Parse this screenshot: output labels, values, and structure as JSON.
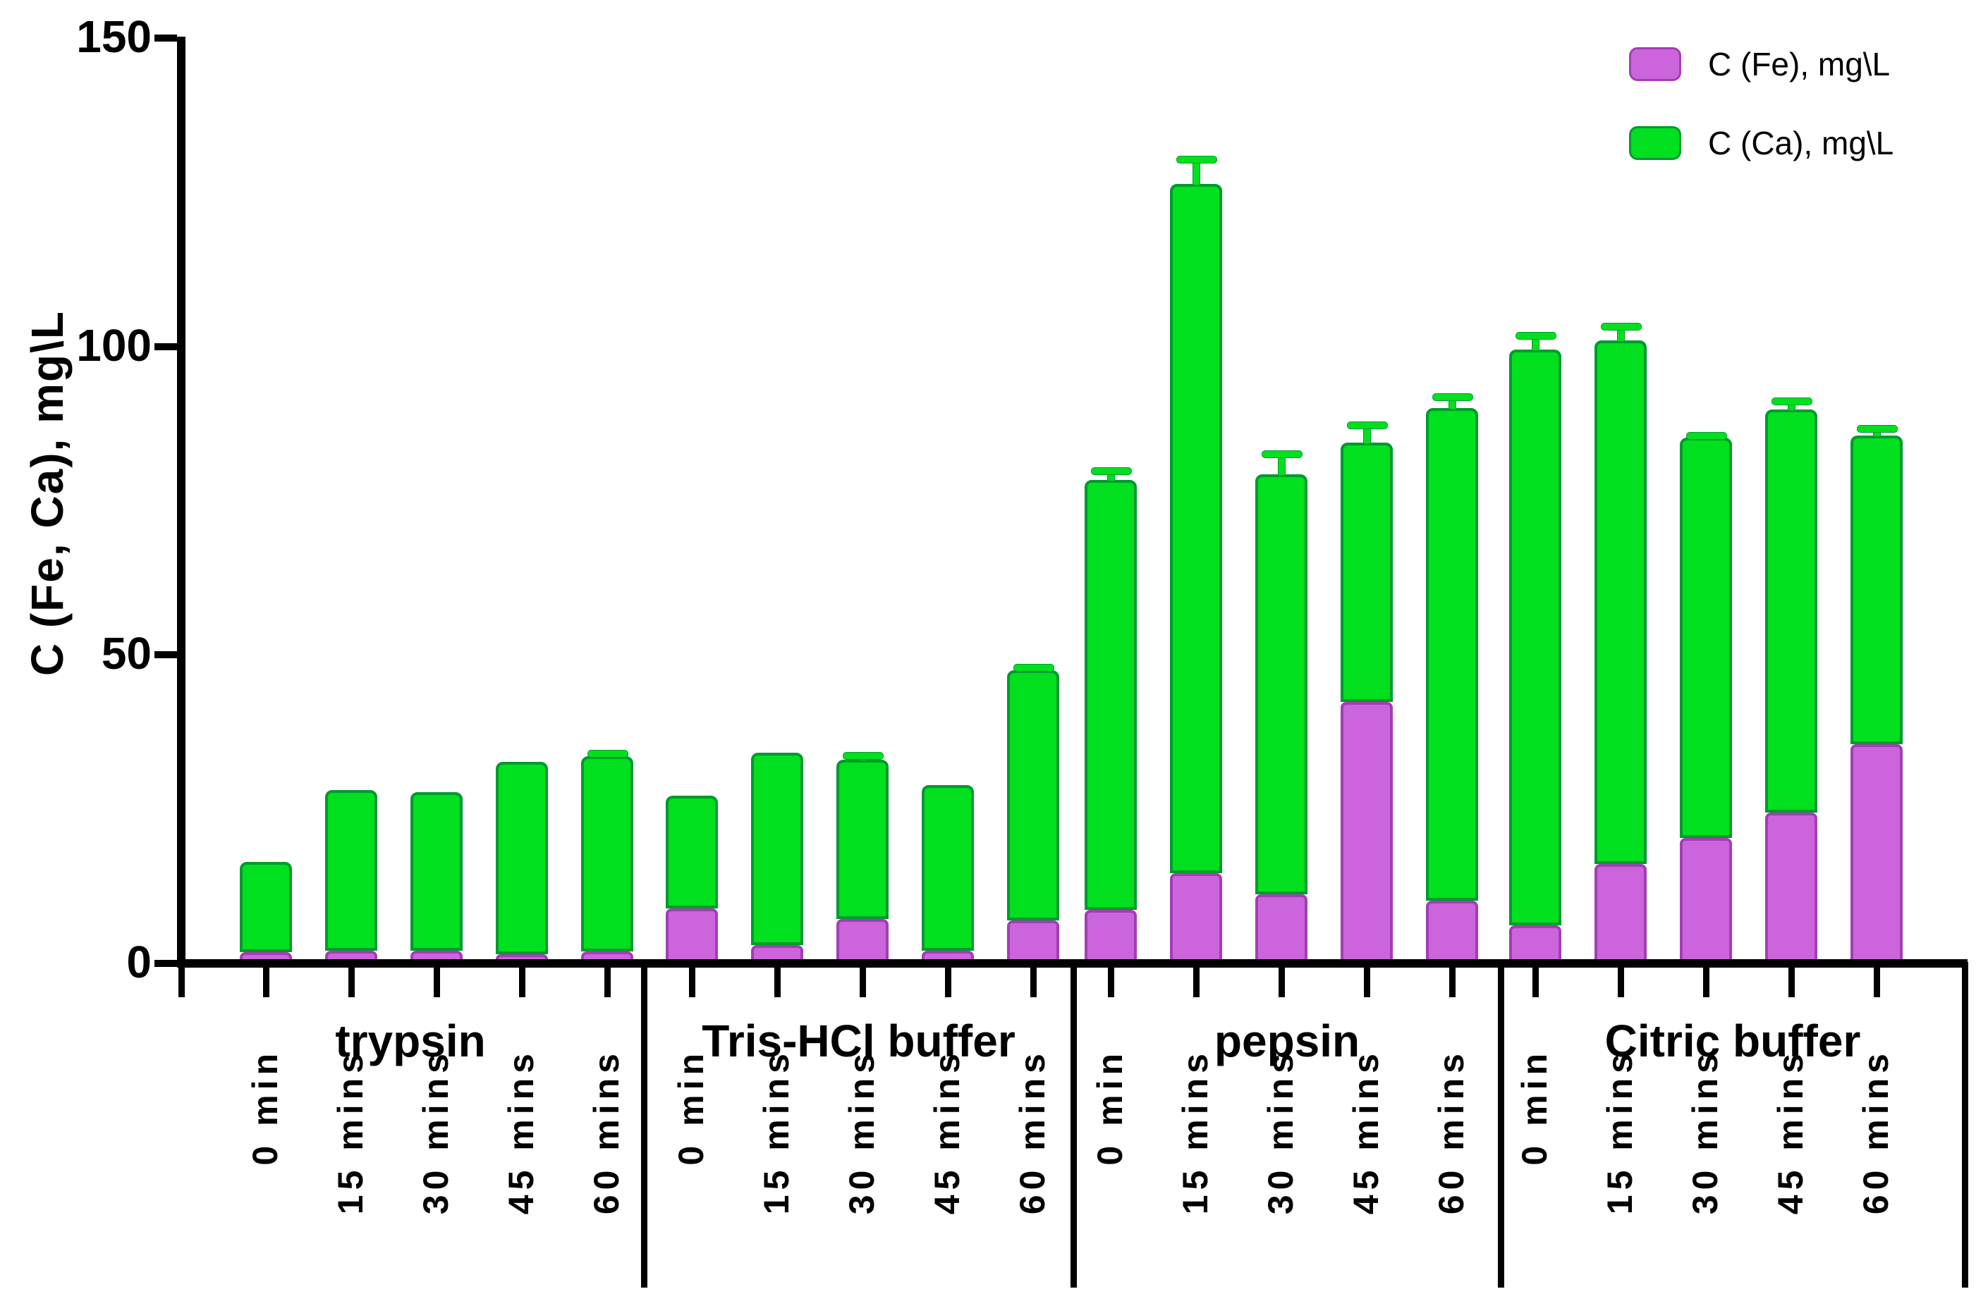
{
  "chart_data": {
    "type": "bar",
    "stacked": true,
    "title": "",
    "ylabel": "C (Fe, Ca), mg\\L",
    "xlabel": "",
    "ylim": [
      0,
      150
    ],
    "yticks": [
      0,
      50,
      100,
      150
    ],
    "grid": false,
    "legend_position": "top-right",
    "legend": [
      {
        "key": "fe",
        "name": "C (Fe), mg\\L",
        "color": "#CC64DC"
      },
      {
        "key": "ca",
        "name": "C (Ca), mg\\L",
        "color": "#00E01E"
      }
    ],
    "colors": {
      "fe_fill": "#CC64DC",
      "fe_border": "#A23EB4",
      "ca_fill": "#00E01E",
      "ca_border": "#009A2E",
      "axis": "#000000"
    },
    "series_note": "bars stacked: fe on bottom, ca on top; err = upward error bar on total",
    "groups": [
      {
        "label": "trypsin",
        "bars": [
          {
            "time": "0 min",
            "fe": 1.1,
            "ca": 14.7,
            "err": 0
          },
          {
            "time": "15 mins",
            "fe": 1.4,
            "ca": 26.0,
            "err": 0
          },
          {
            "time": "30 mins",
            "fe": 1.4,
            "ca": 25.7,
            "err": 0
          },
          {
            "time": "45 mins",
            "fe": 0.8,
            "ca": 31.2,
            "err": 0
          },
          {
            "time": "60 mins",
            "fe": 1.3,
            "ca": 31.6,
            "err": 0.5
          }
        ]
      },
      {
        "label": "Tris-HCl buffer",
        "bars": [
          {
            "time": "0 min",
            "fe": 8.2,
            "ca": 18.3,
            "err": 0
          },
          {
            "time": "15 mins",
            "fe": 2.3,
            "ca": 31.2,
            "err": 0
          },
          {
            "time": "30 mins",
            "fe": 6.5,
            "ca": 25.8,
            "err": 0.7
          },
          {
            "time": "45 mins",
            "fe": 1.4,
            "ca": 26.8,
            "err": 0
          },
          {
            "time": "60 mins",
            "fe": 6.3,
            "ca": 40.5,
            "err": 0.5
          }
        ]
      },
      {
        "label": "pepsin",
        "bars": [
          {
            "time": "0 min",
            "fe": 8.0,
            "ca": 69.7,
            "err": 1.5
          },
          {
            "time": "15 mins",
            "fe": 13.9,
            "ca": 111.8,
            "err": 4.0
          },
          {
            "time": "30 mins",
            "fe": 10.5,
            "ca": 68.1,
            "err": 3.3
          },
          {
            "time": "45 mins",
            "fe": 41.7,
            "ca": 42.0,
            "err": 2.9
          },
          {
            "time": "60 mins",
            "fe": 9.5,
            "ca": 79.8,
            "err": 1.9
          }
        ]
      },
      {
        "label": "Citric buffer",
        "bars": [
          {
            "time": "0 min",
            "fe": 5.5,
            "ca": 93.3,
            "err": 2.3
          },
          {
            "time": "15 mins",
            "fe": 15.4,
            "ca": 84.9,
            "err": 2.3
          },
          {
            "time": "30 mins",
            "fe": 19.7,
            "ca": 64.8,
            "err": 0.4
          },
          {
            "time": "45 mins",
            "fe": 23.8,
            "ca": 65.3,
            "err": 1.4
          },
          {
            "time": "60 mins",
            "fe": 34.8,
            "ca": 50.1,
            "err": 1.1
          }
        ]
      }
    ]
  }
}
